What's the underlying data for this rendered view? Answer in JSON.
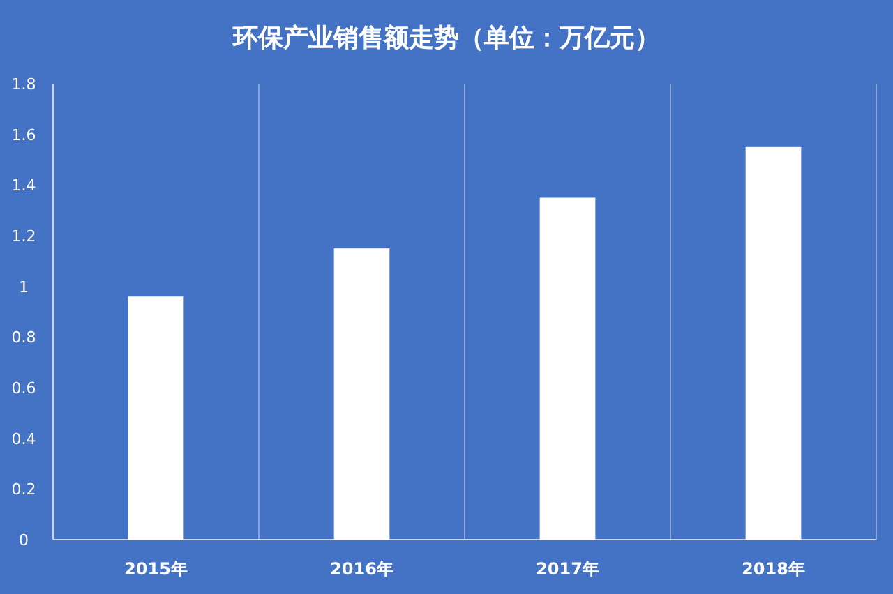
{
  "chart_data": {
    "type": "bar",
    "title": "环保产业销售额走势（单位：万亿元）",
    "categories": [
      "2015年",
      "2016年",
      "2017年",
      "2018年"
    ],
    "values": [
      0.96,
      1.15,
      1.35,
      1.55
    ],
    "color": "#ffffff",
    "ylim": [
      0,
      1.8
    ],
    "yticks": [
      0,
      0.2,
      0.4,
      0.6,
      0.8,
      1,
      1.2,
      1.4,
      1.6,
      1.8
    ],
    "grid": "x"
  }
}
